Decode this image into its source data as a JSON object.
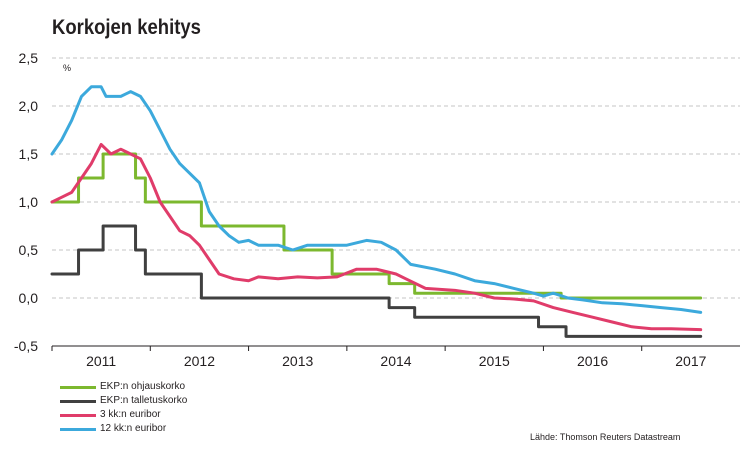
{
  "chart_data": {
    "type": "line",
    "title": "Korkojen kehitys",
    "ylabel": "%",
    "xlabel": "",
    "ylim": [
      -0.5,
      2.5
    ],
    "xlim": [
      2010.5,
      2017.5
    ],
    "yticks": [
      2.5,
      2.0,
      1.5,
      1.0,
      0.5,
      0.0,
      -0.5
    ],
    "ytick_labels": [
      "2,5",
      "2,0",
      "1,5",
      "1,0",
      "0,5",
      "0,0",
      "-0,5"
    ],
    "xtick_labels": [
      "2011",
      "2012",
      "2013",
      "2014",
      "2015",
      "2016",
      "2017"
    ],
    "xtick_positions": [
      2011.0,
      2012.0,
      2013.0,
      2014.0,
      2015.0,
      2016.0,
      2017.0
    ],
    "grid": "horizontal dashed",
    "legend_position": "bottom-left",
    "series": [
      {
        "name": "EKP:n ohjauskorko",
        "color": "#7cb82f",
        "step": true,
        "points": [
          [
            2010.5,
            1.0
          ],
          [
            2010.77,
            1.25
          ],
          [
            2011.02,
            1.5
          ],
          [
            2011.35,
            1.25
          ],
          [
            2011.45,
            1.0
          ],
          [
            2012.02,
            0.75
          ],
          [
            2012.86,
            0.5
          ],
          [
            2013.35,
            0.25
          ],
          [
            2013.93,
            0.15
          ],
          [
            2014.19,
            0.05
          ],
          [
            2015.68,
            0.0
          ],
          [
            2017.1,
            0.0
          ]
        ]
      },
      {
        "name": "EKP:n talletuskorko",
        "color": "#404040",
        "step": true,
        "points": [
          [
            2010.5,
            0.25
          ],
          [
            2010.77,
            0.5
          ],
          [
            2011.02,
            0.75
          ],
          [
            2011.35,
            0.5
          ],
          [
            2011.45,
            0.25
          ],
          [
            2012.02,
            0.0
          ],
          [
            2013.93,
            -0.1
          ],
          [
            2014.19,
            -0.2
          ],
          [
            2015.45,
            -0.3
          ],
          [
            2015.73,
            -0.4
          ],
          [
            2017.1,
            -0.4
          ]
        ]
      },
      {
        "name": "3 kk:n euribor",
        "color": "#e03c6a",
        "step": false,
        "points": [
          [
            2010.5,
            1.0
          ],
          [
            2010.6,
            1.05
          ],
          [
            2010.7,
            1.1
          ],
          [
            2010.8,
            1.25
          ],
          [
            2010.9,
            1.4
          ],
          [
            2011.0,
            1.6
          ],
          [
            2011.1,
            1.5
          ],
          [
            2011.2,
            1.55
          ],
          [
            2011.3,
            1.5
          ],
          [
            2011.4,
            1.45
          ],
          [
            2011.5,
            1.25
          ],
          [
            2011.6,
            1.0
          ],
          [
            2011.7,
            0.85
          ],
          [
            2011.8,
            0.7
          ],
          [
            2011.9,
            0.65
          ],
          [
            2012.0,
            0.55
          ],
          [
            2012.1,
            0.4
          ],
          [
            2012.2,
            0.25
          ],
          [
            2012.35,
            0.2
          ],
          [
            2012.5,
            0.18
          ],
          [
            2012.6,
            0.22
          ],
          [
            2012.8,
            0.2
          ],
          [
            2013.0,
            0.22
          ],
          [
            2013.2,
            0.21
          ],
          [
            2013.4,
            0.22
          ],
          [
            2013.6,
            0.3
          ],
          [
            2013.8,
            0.3
          ],
          [
            2014.0,
            0.25
          ],
          [
            2014.1,
            0.2
          ],
          [
            2014.3,
            0.1
          ],
          [
            2014.6,
            0.08
          ],
          [
            2014.8,
            0.05
          ],
          [
            2015.0,
            0.0
          ],
          [
            2015.2,
            -0.01
          ],
          [
            2015.4,
            -0.03
          ],
          [
            2015.6,
            -0.1
          ],
          [
            2015.8,
            -0.15
          ],
          [
            2016.0,
            -0.2
          ],
          [
            2016.2,
            -0.25
          ],
          [
            2016.4,
            -0.3
          ],
          [
            2016.6,
            -0.32
          ],
          [
            2016.8,
            -0.32
          ],
          [
            2017.1,
            -0.33
          ]
        ]
      },
      {
        "name": "12 kk:n euribor",
        "color": "#3ca9dc",
        "step": false,
        "points": [
          [
            2010.5,
            1.5
          ],
          [
            2010.6,
            1.65
          ],
          [
            2010.7,
            1.85
          ],
          [
            2010.8,
            2.1
          ],
          [
            2010.9,
            2.2
          ],
          [
            2011.0,
            2.2
          ],
          [
            2011.05,
            2.1
          ],
          [
            2011.2,
            2.1
          ],
          [
            2011.3,
            2.15
          ],
          [
            2011.4,
            2.1
          ],
          [
            2011.5,
            1.95
          ],
          [
            2011.6,
            1.75
          ],
          [
            2011.7,
            1.55
          ],
          [
            2011.8,
            1.4
          ],
          [
            2011.9,
            1.3
          ],
          [
            2012.0,
            1.2
          ],
          [
            2012.1,
            0.9
          ],
          [
            2012.2,
            0.75
          ],
          [
            2012.3,
            0.65
          ],
          [
            2012.4,
            0.58
          ],
          [
            2012.5,
            0.6
          ],
          [
            2012.6,
            0.55
          ],
          [
            2012.8,
            0.55
          ],
          [
            2012.95,
            0.5
          ],
          [
            2013.1,
            0.55
          ],
          [
            2013.3,
            0.55
          ],
          [
            2013.5,
            0.55
          ],
          [
            2013.7,
            0.6
          ],
          [
            2013.85,
            0.58
          ],
          [
            2014.0,
            0.5
          ],
          [
            2014.15,
            0.35
          ],
          [
            2014.4,
            0.3
          ],
          [
            2014.6,
            0.25
          ],
          [
            2014.8,
            0.18
          ],
          [
            2015.0,
            0.15
          ],
          [
            2015.2,
            0.1
          ],
          [
            2015.4,
            0.05
          ],
          [
            2015.5,
            0.02
          ],
          [
            2015.6,
            0.05
          ],
          [
            2015.75,
            0.0
          ],
          [
            2015.9,
            -0.02
          ],
          [
            2016.1,
            -0.05
          ],
          [
            2016.3,
            -0.06
          ],
          [
            2016.5,
            -0.08
          ],
          [
            2016.7,
            -0.1
          ],
          [
            2016.9,
            -0.12
          ],
          [
            2017.1,
            -0.15
          ]
        ]
      }
    ],
    "source": "Lähde: Thomson Reuters Datastream"
  }
}
